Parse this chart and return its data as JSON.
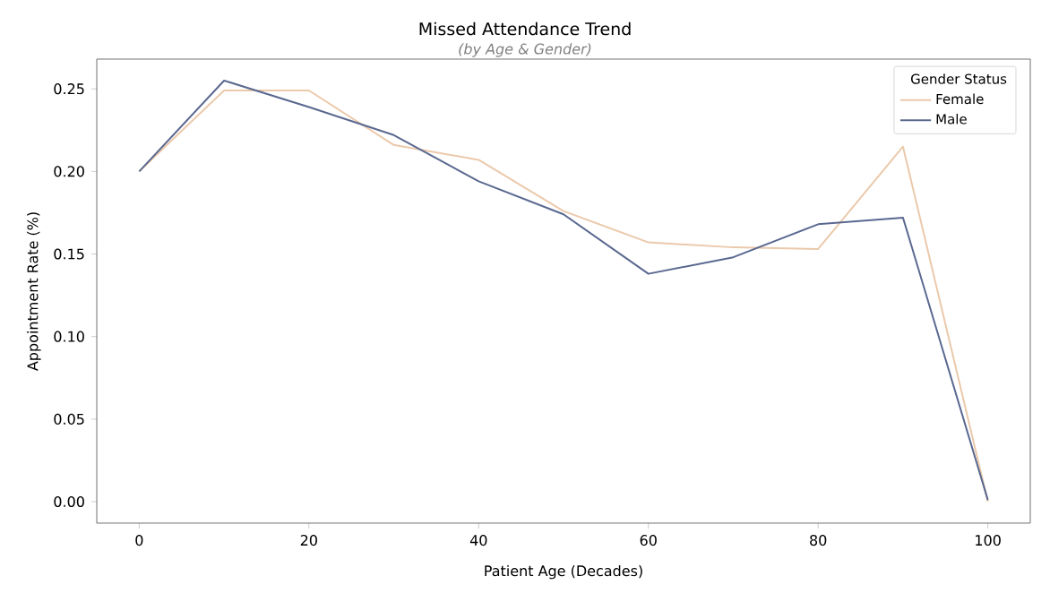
{
  "chart_data": {
    "type": "line",
    "title": "Missed Attendance Trend",
    "subtitle": "(by Age & Gender)",
    "xlabel": "Patient Age (Decades)",
    "ylabel": "Appointment Rate (%)",
    "legend_title": "Gender Status",
    "legend": "top right",
    "x": [
      0,
      10,
      20,
      30,
      40,
      50,
      60,
      70,
      80,
      90,
      100
    ],
    "series": [
      {
        "name": "Female",
        "color": "#ebc9ab",
        "values": [
          0.2,
          0.249,
          0.249,
          0.216,
          0.207,
          0.176,
          0.157,
          0.154,
          0.153,
          0.215,
          0.0
        ]
      },
      {
        "name": "Male",
        "color": "#5a6890",
        "values": [
          0.2,
          0.255,
          0.239,
          0.222,
          0.194,
          0.174,
          0.138,
          0.148,
          0.168,
          0.172,
          0.001
        ]
      }
    ],
    "xlim": [
      -5,
      105
    ],
    "ylim": [
      -0.013,
      0.268
    ],
    "xticks": [
      0,
      20,
      40,
      60,
      80,
      100
    ],
    "yticks": [
      {
        "value": 0,
        "label": "0.00"
      },
      {
        "value": 0.05,
        "label": "0.05"
      },
      {
        "value": 0.1,
        "label": "0.10"
      },
      {
        "value": 0.15,
        "label": "0.15"
      },
      {
        "value": 0.2,
        "label": "0.20"
      },
      {
        "value": 0.25,
        "label": "0.25"
      }
    ]
  }
}
